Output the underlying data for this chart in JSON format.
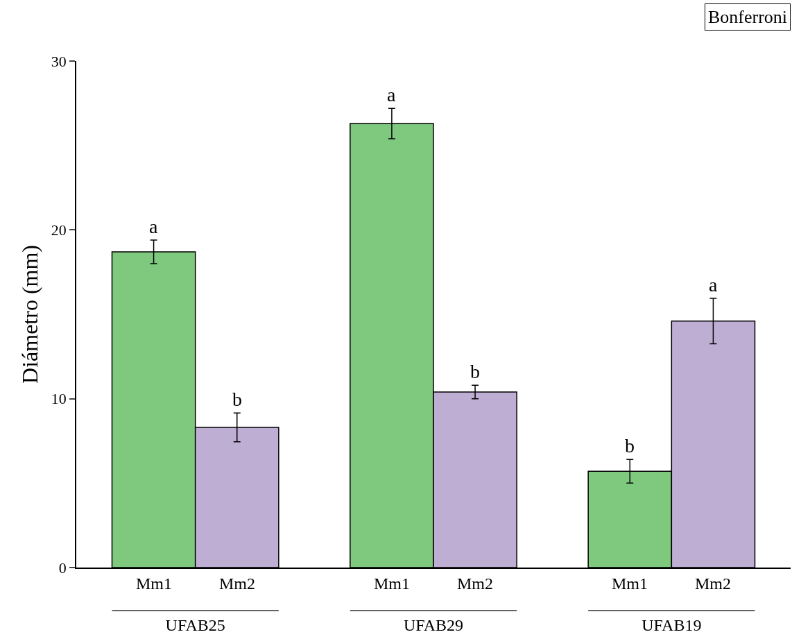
{
  "chart_data": {
    "type": "bar",
    "ylabel": "Diámetro (mm)",
    "categories": [
      "UFAB25",
      "UFAB29",
      "UFAB19"
    ],
    "series": [
      {
        "name": "Mm1",
        "color": "#7fc97f",
        "values": [
          18.7,
          26.3,
          5.7
        ],
        "errors": [
          0.7,
          0.9,
          0.7
        ],
        "value_labels": [
          "a",
          "a",
          "b"
        ]
      },
      {
        "name": "Mm2",
        "color": "#beaed4",
        "values": [
          8.3,
          10.4,
          14.6
        ],
        "errors": [
          0.85,
          0.4,
          1.35
        ],
        "value_labels": [
          "b",
          "b",
          "a"
        ]
      }
    ],
    "ylim": [
      0,
      30
    ],
    "yticks": [
      0,
      10,
      20,
      30
    ],
    "legend": false,
    "annotations": [
      "Bonferroni"
    ]
  }
}
